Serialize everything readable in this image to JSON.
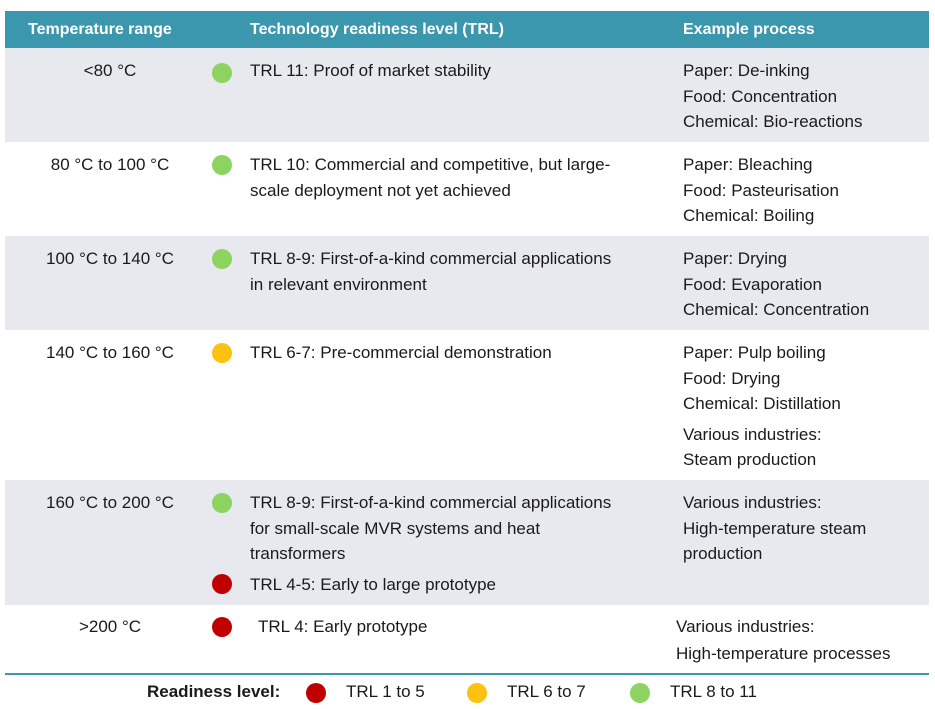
{
  "header": {
    "temperature": "Temperature range",
    "trl": "Technology readiness level (TRL)",
    "example": "Example process"
  },
  "rows": [
    {
      "temp": "<80 °C",
      "trl": [
        {
          "status": "green",
          "lines": [
            "TRL 11: Proof of market stability"
          ]
        }
      ],
      "examples": [
        "Paper: De-inking",
        "Food: Concentration",
        "Chemical: Bio-reactions"
      ]
    },
    {
      "temp": "80 °C to 100 °C",
      "trl": [
        {
          "status": "green",
          "lines": [
            "TRL 10: Commercial and competitive, but large-",
            "scale deployment not yet achieved"
          ]
        }
      ],
      "examples": [
        "Paper: Bleaching",
        "Food: Pasteurisation",
        "Chemical: Boiling"
      ]
    },
    {
      "temp": "100 °C to 140 °C",
      "trl": [
        {
          "status": "green",
          "lines": [
            "TRL 8-9: First-of-a-kind commercial applications",
            "in relevant environment"
          ]
        }
      ],
      "examples": [
        "Paper: Drying",
        "Food: Evaporation",
        "Chemical: Concentration"
      ]
    },
    {
      "temp": "140 °C to 160 °C",
      "trl": [
        {
          "status": "yellow",
          "lines": [
            "TRL 6-7: Pre-commercial demonstration"
          ]
        }
      ],
      "examples": [
        "Paper: Pulp boiling",
        "Food: Drying",
        "Chemical: Distillation",
        "Various industries:",
        "Steam production"
      ]
    },
    {
      "temp": "160 °C to 200 °C",
      "trl": [
        {
          "status": "green",
          "lines": [
            "TRL 8-9: First-of-a-kind commercial applications",
            "for small-scale MVR systems and heat",
            "transformers"
          ]
        },
        {
          "status": "red",
          "lines": [
            "TRL 4-5: Early to large prototype"
          ]
        }
      ],
      "examples": [
        "Various industries:",
        "High-temperature steam",
        "production"
      ]
    },
    {
      "temp": ">200 °C",
      "trl": [
        {
          "status": "red",
          "lines": [
            "TRL 4: Early prototype"
          ]
        }
      ],
      "examples": [
        "Various industries:",
        "High-temperature processes"
      ]
    }
  ],
  "legend": {
    "title": "Readiness level:",
    "items": [
      {
        "status": "red",
        "label": "TRL 1 to 5"
      },
      {
        "status": "yellow",
        "label": "TRL 6 to 7"
      },
      {
        "status": "green",
        "label": "TRL 8 to 11"
      }
    ]
  },
  "colors": {
    "header_bg": "#3a97ad",
    "row_shade": "#e7e9ef",
    "green": "#8dd35f",
    "yellow": "#fdc20f",
    "red": "#c00000"
  }
}
